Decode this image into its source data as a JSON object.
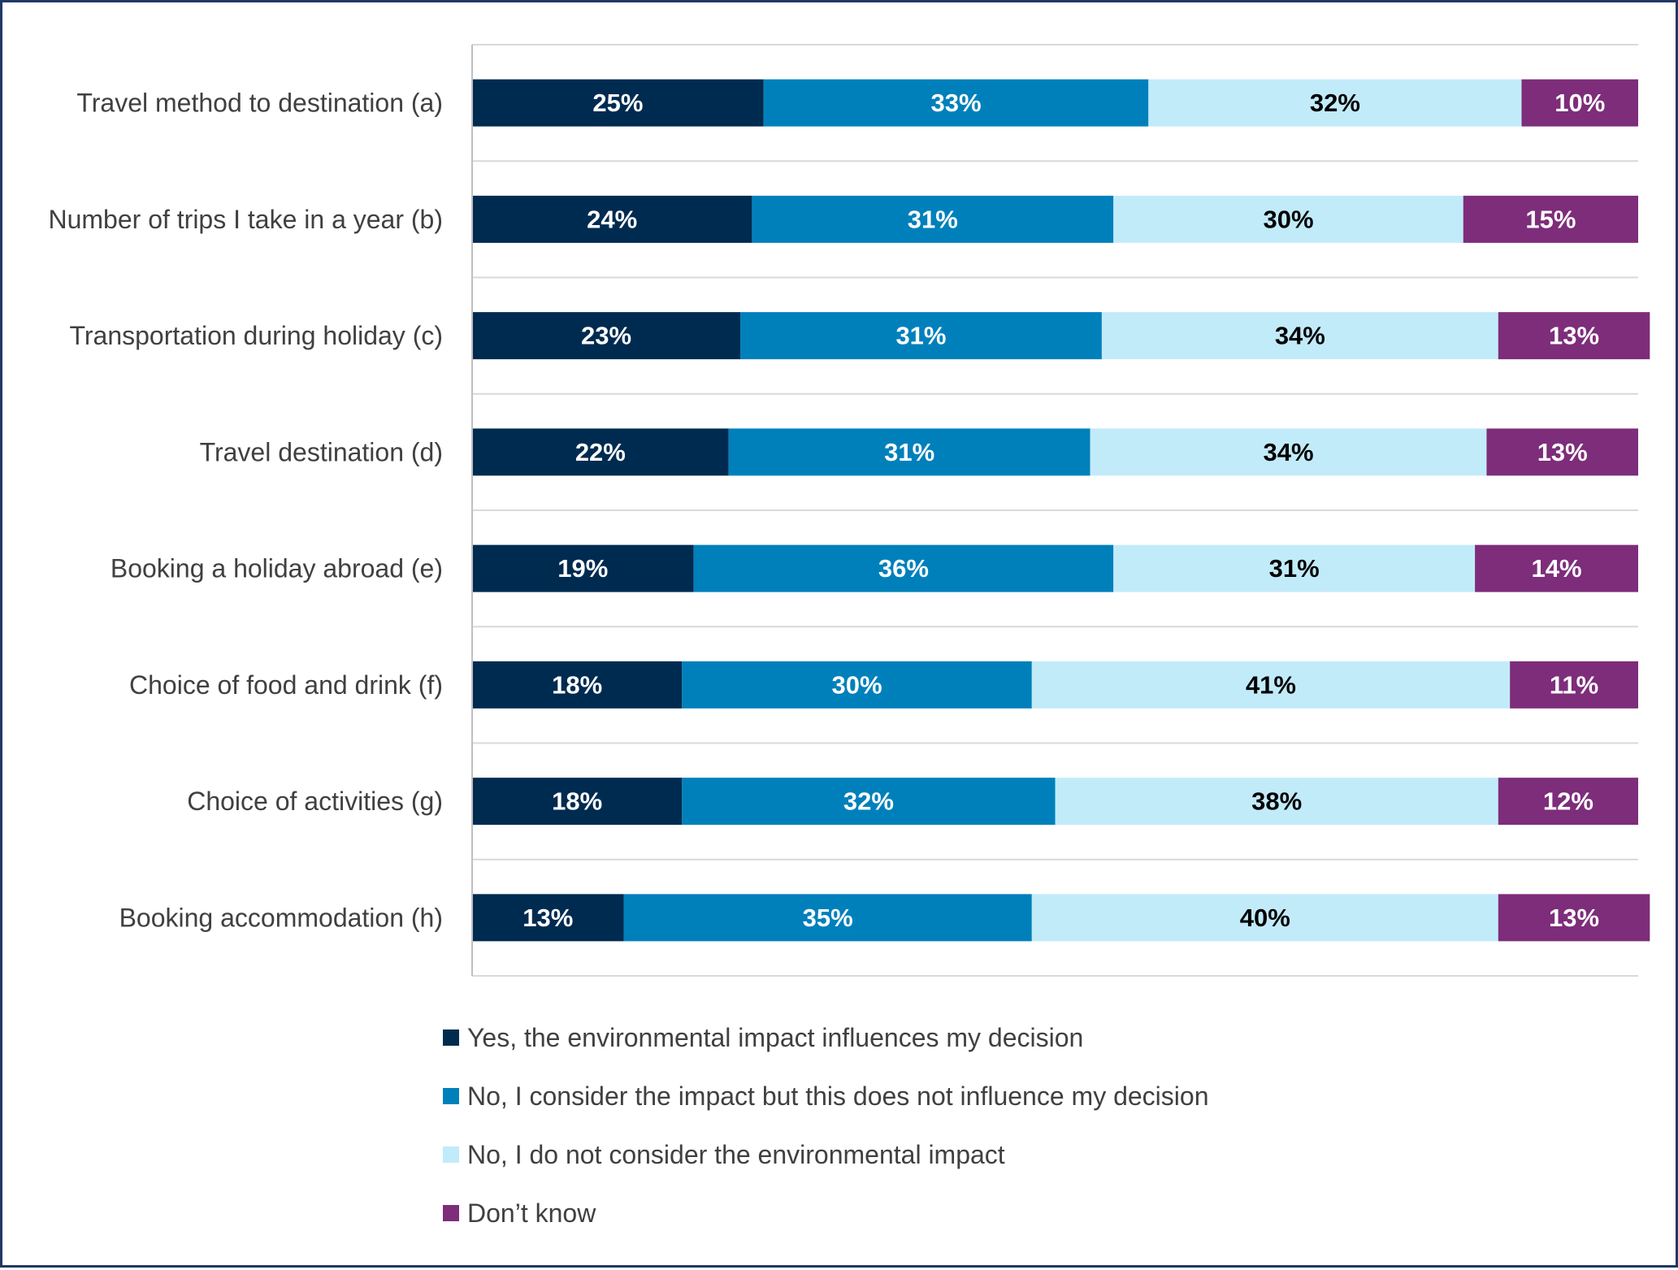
{
  "chart_data": {
    "type": "bar",
    "orientation": "horizontal-stacked-100",
    "categories": [
      "Travel method to destination (a)",
      "Number of trips I take in a year (b)",
      "Transportation during holiday (c)",
      "Travel destination (d)",
      "Booking a holiday abroad (e)",
      "Choice of food and drink (f)",
      "Choice of activities (g)",
      "Booking accommodation (h)"
    ],
    "series": [
      {
        "name": "Yes, the environmental impact influences my decision",
        "color": "#002b50",
        "label_color": "#ffffff",
        "values": [
          25,
          24,
          23,
          22,
          19,
          18,
          18,
          13
        ]
      },
      {
        "name": "No, I consider the impact but this does not influence my decision",
        "color": "#0080bb",
        "label_color": "#ffffff",
        "values": [
          33,
          31,
          31,
          31,
          36,
          30,
          32,
          35
        ]
      },
      {
        "name": "No, I do not consider the environmental impact",
        "color": "#c2ebfa",
        "label_color": "#000000",
        "values": [
          32,
          30,
          34,
          34,
          31,
          41,
          38,
          40
        ]
      },
      {
        "name": "Don’t know",
        "color": "#7d2d7a",
        "label_color": "#ffffff",
        "values": [
          10,
          15,
          13,
          13,
          14,
          11,
          12,
          13
        ]
      }
    ],
    "value_suffix": "%",
    "xlim": [
      0,
      100
    ],
    "grid": true,
    "legend_position": "bottom"
  }
}
